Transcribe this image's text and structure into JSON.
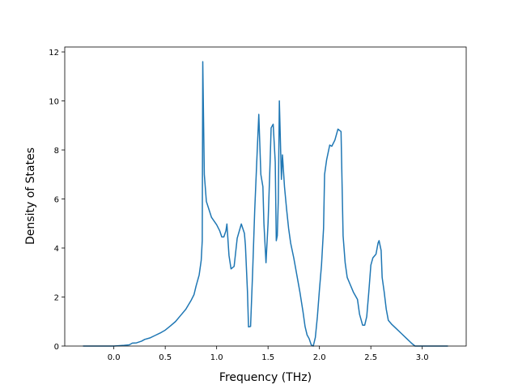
{
  "chart_data": {
    "type": "line",
    "x_label": "Frequency (THz)",
    "y_label": "Density of States",
    "x": [
      -0.3,
      0.0,
      0.1,
      0.15,
      0.18,
      0.22,
      0.27,
      0.3,
      0.35,
      0.4,
      0.45,
      0.5,
      0.55,
      0.6,
      0.65,
      0.7,
      0.75,
      0.78,
      0.8,
      0.83,
      0.85,
      0.86,
      0.865,
      0.88,
      0.9,
      0.95,
      1.0,
      1.03,
      1.05,
      1.07,
      1.09,
      1.1,
      1.12,
      1.14,
      1.17,
      1.2,
      1.24,
      1.27,
      1.28,
      1.3,
      1.31,
      1.33,
      1.35,
      1.37,
      1.39,
      1.41,
      1.43,
      1.45,
      1.46,
      1.48,
      1.5,
      1.52,
      1.53,
      1.55,
      1.57,
      1.58,
      1.59,
      1.6,
      1.61,
      1.63,
      1.64,
      1.66,
      1.68,
      1.7,
      1.72,
      1.75,
      1.78,
      1.81,
      1.84,
      1.86,
      1.88,
      1.9,
      1.92,
      1.94,
      1.96,
      1.98,
      2.0,
      2.02,
      2.04,
      2.05,
      2.07,
      2.1,
      2.12,
      2.15,
      2.18,
      2.21,
      2.23,
      2.25,
      2.27,
      2.3,
      2.33,
      2.37,
      2.39,
      2.42,
      2.44,
      2.46,
      2.48,
      2.5,
      2.52,
      2.55,
      2.57,
      2.58,
      2.6,
      2.61,
      2.63,
      2.65,
      2.67,
      2.7,
      2.75,
      2.8,
      2.85,
      2.9,
      2.93,
      3.0,
      3.25
    ],
    "values": [
      0,
      0,
      0.03,
      0.05,
      0.12,
      0.13,
      0.2,
      0.27,
      0.33,
      0.43,
      0.53,
      0.65,
      0.82,
      1.0,
      1.25,
      1.5,
      1.85,
      2.1,
      2.45,
      2.9,
      3.5,
      4.3,
      11.6,
      7.0,
      5.9,
      5.25,
      4.95,
      4.7,
      4.45,
      4.45,
      4.7,
      4.98,
      3.7,
      3.15,
      3.25,
      4.4,
      4.98,
      4.6,
      4.1,
      2.2,
      0.78,
      0.8,
      3.0,
      5.5,
      7.5,
      9.45,
      7.0,
      6.5,
      5.0,
      3.4,
      5.0,
      7.5,
      8.9,
      9.05,
      7.5,
      4.3,
      4.5,
      6.0,
      10.0,
      6.8,
      7.8,
      6.5,
      5.6,
      4.8,
      4.2,
      3.6,
      2.9,
      2.2,
      1.4,
      0.8,
      0.45,
      0.3,
      0.05,
      0.0,
      0.35,
      1.2,
      2.3,
      3.3,
      4.8,
      7.0,
      7.6,
      8.2,
      8.15,
      8.4,
      8.85,
      8.75,
      4.5,
      3.4,
      2.8,
      2.5,
      2.2,
      1.9,
      1.3,
      0.85,
      0.85,
      1.2,
      2.2,
      3.3,
      3.6,
      3.75,
      4.2,
      4.3,
      3.9,
      2.8,
      2.2,
      1.5,
      1.05,
      0.9,
      0.7,
      0.5,
      0.3,
      0.1,
      0.0,
      0,
      0
    ],
    "color": "#1f77b4",
    "xlim": [
      -0.4775,
      3.4275
    ],
    "ylim": [
      0,
      12.2
    ],
    "xticks": [
      {
        "value": 0,
        "label": "0.0"
      },
      0.5,
      {
        "value": 1,
        "label": "1.0"
      },
      1.5,
      {
        "value": 2,
        "label": "2.0"
      },
      2.5,
      {
        "value": 3,
        "label": "3.0"
      }
    ],
    "yticks": [
      0,
      2,
      4,
      6,
      8,
      10,
      12
    ]
  }
}
